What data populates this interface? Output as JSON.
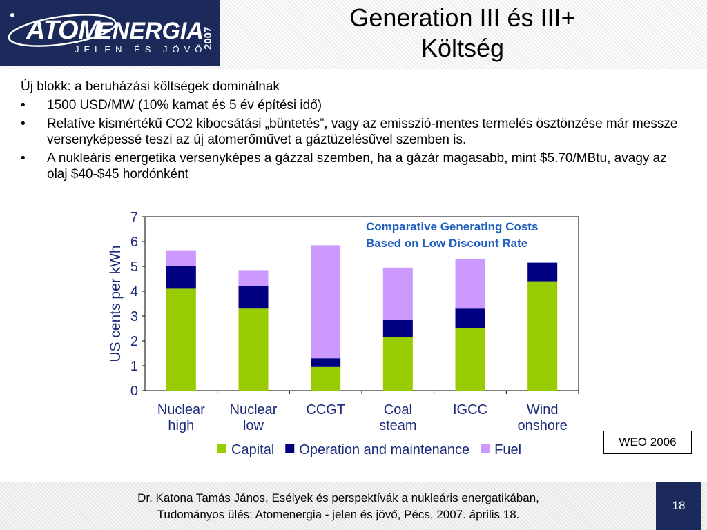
{
  "logo": {
    "brand_at": "AT",
    "brand_om": "OM",
    "brand_rest": "ENERGIA",
    "tagline": "JELEN ÉS JÖVŐ",
    "year": "2007"
  },
  "title": {
    "line1": "Generation III és III+",
    "line2": "Költség"
  },
  "body": {
    "intro": "Új blokk: a beruházási költségek dominálnak",
    "bullet_symbol": "•",
    "bullets": [
      "1500 USD/MW (10% kamat és 5 év építési idő)",
      "Relatíve kismértékű CO2 kibocsátási „büntetés”, vagy az emisszió-mentes termelés ösztönzése már messze versenyképessé teszi az új atomerőművet a gáztüzelésűvel szemben is.",
      "A nukleáris energetika versenyképes a gázzal szemben, ha a gázár magasabb, mint $5.70/MBtu, avagy az olaj $40-$45 hordónként"
    ]
  },
  "chart_data": {
    "type": "bar",
    "stacked": true,
    "title": "Comparative Generating Costs Based on Low Discount Rate",
    "title_lines": [
      "Comparative Generating Costs",
      "Based on Low Discount Rate"
    ],
    "ylabel": "US cents per kWh",
    "ylim": [
      0,
      7
    ],
    "yticks": [
      0,
      1,
      2,
      3,
      4,
      5,
      6,
      7
    ],
    "grid": false,
    "legend_position": "bottom",
    "categories": [
      [
        "Nuclear",
        "high"
      ],
      [
        "Nuclear",
        "low"
      ],
      [
        "CCGT"
      ],
      [
        "Coal",
        "steam"
      ],
      [
        "IGCC"
      ],
      [
        "Wind",
        "onshore"
      ]
    ],
    "series": [
      {
        "name": "Capital",
        "color": "#99cc00",
        "values": [
          4.1,
          3.3,
          0.95,
          2.15,
          2.5,
          4.4
        ]
      },
      {
        "name": "Operation and maintenance",
        "color": "#000080",
        "values": [
          0.9,
          0.9,
          0.35,
          0.7,
          0.8,
          0.75
        ]
      },
      {
        "name": "Fuel",
        "color": "#cc99ff",
        "values": [
          0.65,
          0.65,
          4.55,
          2.1,
          2.0,
          0
        ]
      }
    ],
    "title_color": "#1f5fbf",
    "text_color": "#1b2a7a"
  },
  "source": "WEO 2006",
  "footer": {
    "line1": "Dr. Katona Tamás János, Esélyek és perspektívák a nukleáris energatikában,",
    "line2": "Tudományos ülés: Atomenergia - jelen és jövő, Pécs, 2007. április 18.",
    "page_number": "18"
  }
}
